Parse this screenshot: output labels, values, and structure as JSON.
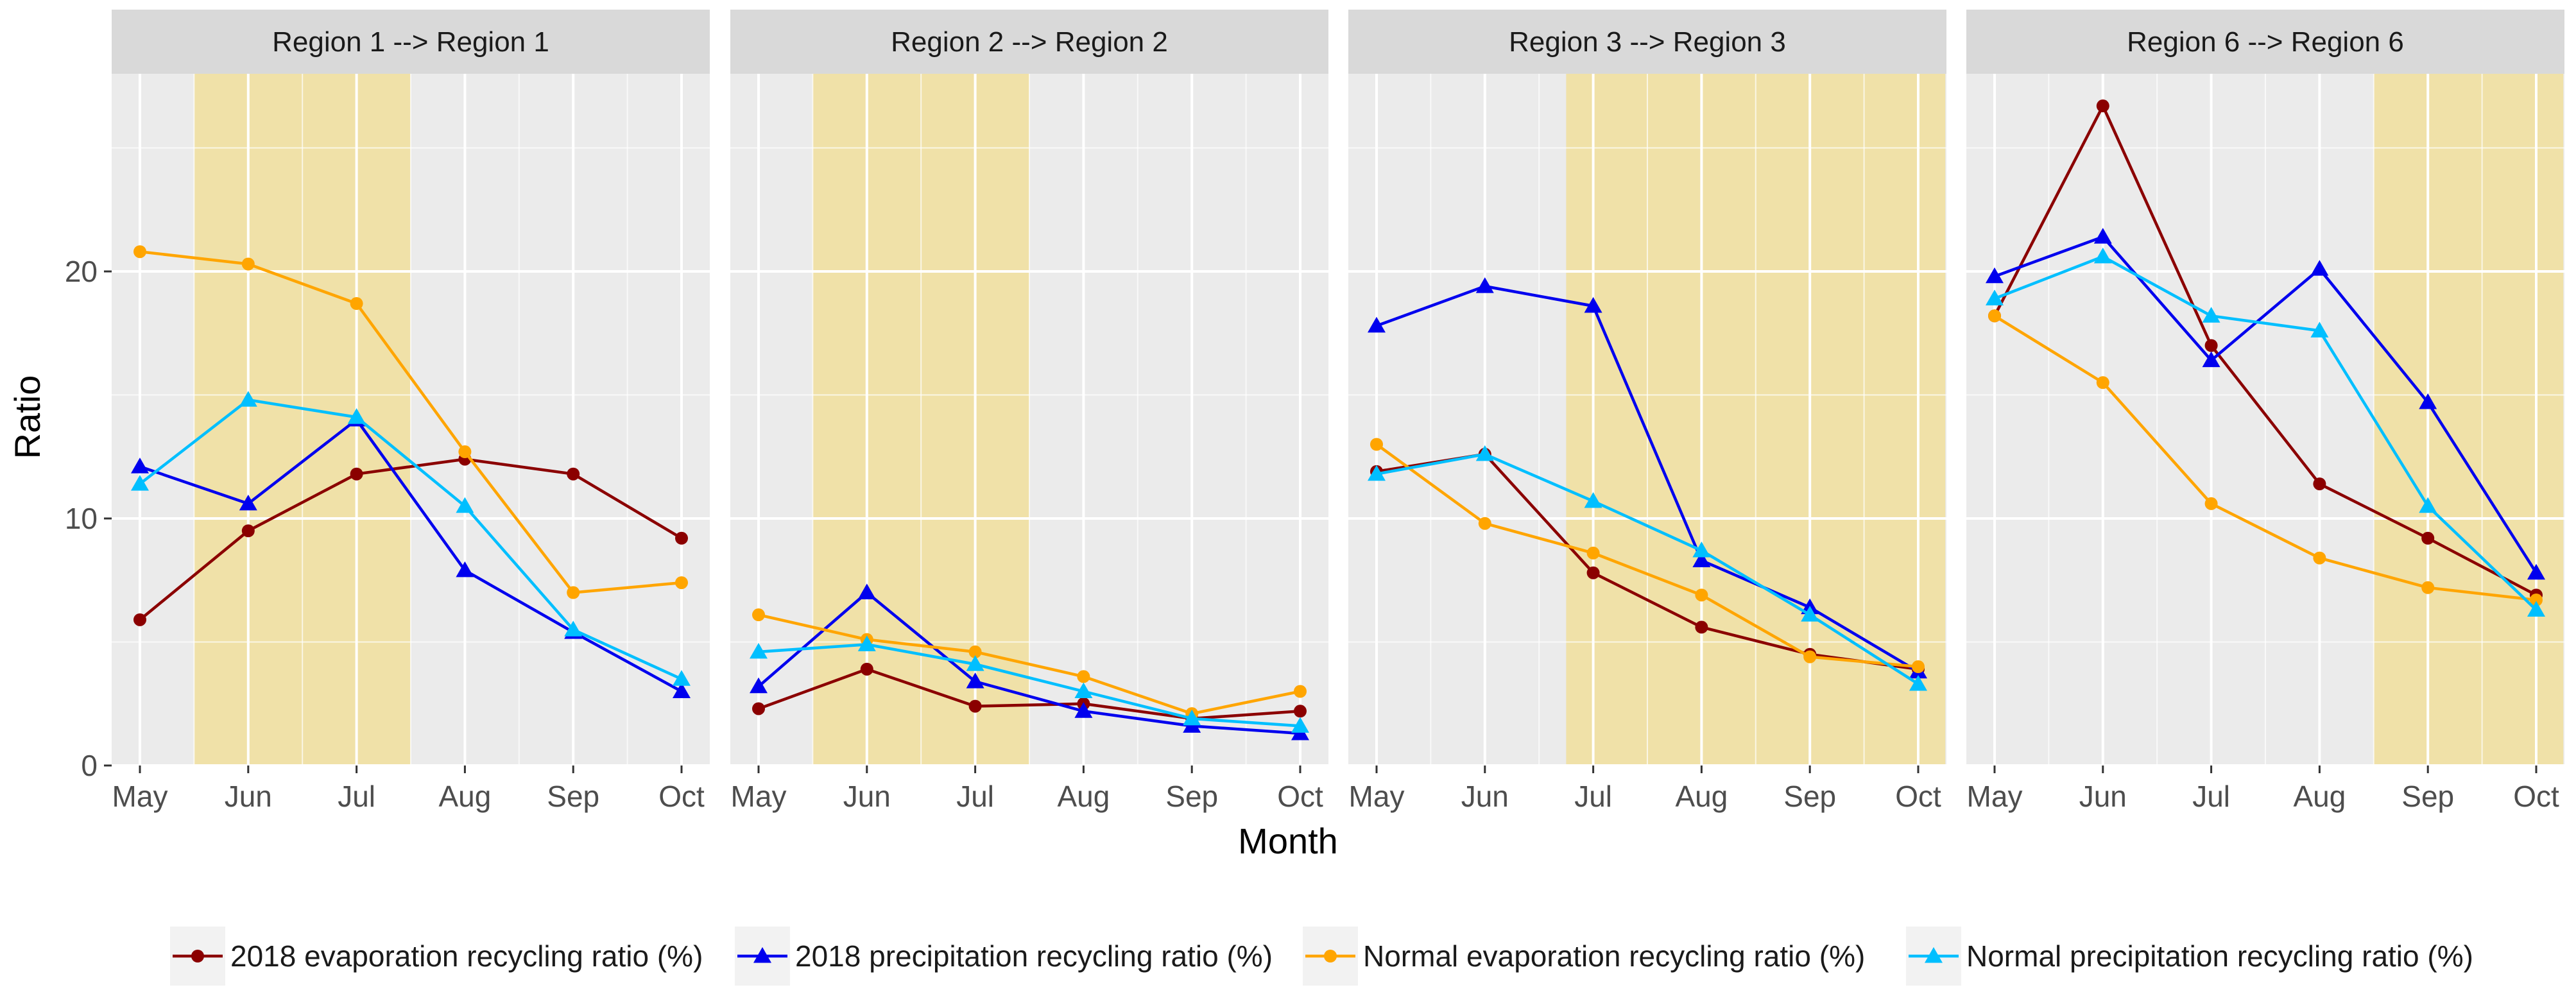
{
  "chart_data": {
    "type": "line",
    "facet_titles": [
      "Region 1 --> Region 1",
      "Region 2 --> Region 2",
      "Region 3 --> Region 3",
      "Region 6 --> Region 6"
    ],
    "categories": [
      "May",
      "Jun",
      "Jul",
      "Aug",
      "Sep",
      "Oct"
    ],
    "xlabel": "Month",
    "ylabel": "Ratio",
    "ylim": [
      0,
      28
    ],
    "yticks": [
      0,
      10,
      20
    ],
    "grid": true,
    "legend_position": "bottom",
    "highlight_ranges": [
      {
        "facet": 0,
        "from": 0.5,
        "to": 2.5
      },
      {
        "facet": 1,
        "from": 0.5,
        "to": 2.5
      },
      {
        "facet": 2,
        "from": 1.75,
        "to": 5.25
      },
      {
        "facet": 3,
        "from": 3.5,
        "to": 5.25
      }
    ],
    "series": [
      {
        "name": "2018 evaporation recycling ratio (%)",
        "color": "#8b0000",
        "marker": "circle",
        "values": [
          [
            5.9,
            9.5,
            11.8,
            12.4,
            11.8,
            9.2
          ],
          [
            2.3,
            3.9,
            2.4,
            2.5,
            1.9,
            2.2
          ],
          [
            11.9,
            12.6,
            7.8,
            5.6,
            4.5,
            3.9
          ],
          [
            18.2,
            26.7,
            17.0,
            11.4,
            9.2,
            6.9
          ]
        ]
      },
      {
        "name": "2018 precipitation recycling ratio (%)",
        "color": "#0000ee",
        "marker": "triangle",
        "values": [
          [
            12.1,
            10.6,
            14.0,
            7.9,
            5.4,
            3.0
          ],
          [
            3.2,
            7.0,
            3.4,
            2.2,
            1.6,
            1.3
          ],
          [
            17.8,
            19.4,
            18.6,
            8.3,
            6.4,
            3.8
          ],
          [
            19.8,
            21.4,
            16.4,
            20.1,
            14.7,
            7.8
          ]
        ]
      },
      {
        "name": "Normal evaporation recycling ratio (%)",
        "color": "#ffa500",
        "marker": "circle",
        "values": [
          [
            20.8,
            20.3,
            18.7,
            12.7,
            7.0,
            7.4
          ],
          [
            6.1,
            5.1,
            4.6,
            3.6,
            2.1,
            3.0
          ],
          [
            13.0,
            9.8,
            8.6,
            6.9,
            4.4,
            4.0
          ],
          [
            18.2,
            15.5,
            10.6,
            8.4,
            7.2,
            6.7
          ]
        ]
      },
      {
        "name": "Normal precipitation recycling ratio (%)",
        "color": "#00bfff",
        "marker": "triangle",
        "values": [
          [
            11.4,
            14.8,
            14.1,
            10.5,
            5.5,
            3.5
          ],
          [
            4.6,
            4.9,
            4.1,
            3.0,
            1.9,
            1.6
          ],
          [
            11.8,
            12.6,
            10.7,
            8.7,
            6.1,
            3.3
          ],
          [
            18.9,
            20.6,
            18.2,
            17.6,
            10.5,
            6.3
          ]
        ]
      }
    ]
  }
}
